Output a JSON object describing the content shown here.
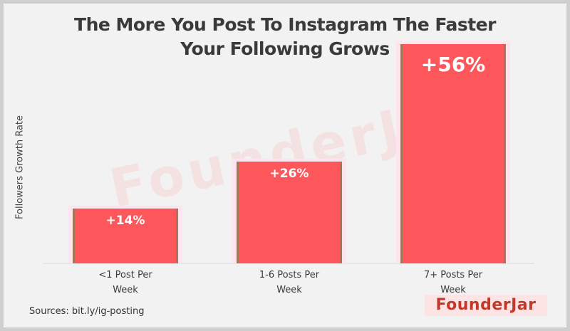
{
  "title_lines": [
    "The More You Post To Instagram The Faster",
    "Your Following Grows"
  ],
  "source_text": "Sources: bit.ly/ig-posting",
  "logo_text": "FounderJar",
  "watermark_text": "FounderJar",
  "colors": {
    "bar": "#fe575b",
    "bar_edge": "#a0785a",
    "highlight": "#fde4ef",
    "text": "#3a3a3a",
    "axis": "#d9d9d9"
  },
  "chart_data": {
    "type": "bar",
    "title": "The More You Post To Instagram The Faster Your Following Grows",
    "xlabel": "",
    "ylabel": "Followers Growth Rate",
    "categories": [
      [
        "<1 Post Per",
        "Week"
      ],
      [
        "1-6 Posts Per",
        "Week"
      ],
      [
        "7+ Posts Per",
        "Week"
      ]
    ],
    "values": [
      14,
      26,
      56
    ],
    "value_labels": [
      "+14%",
      "+26%",
      "+56%"
    ],
    "ylim": [
      0,
      60
    ],
    "grid": false,
    "legend": "none"
  }
}
